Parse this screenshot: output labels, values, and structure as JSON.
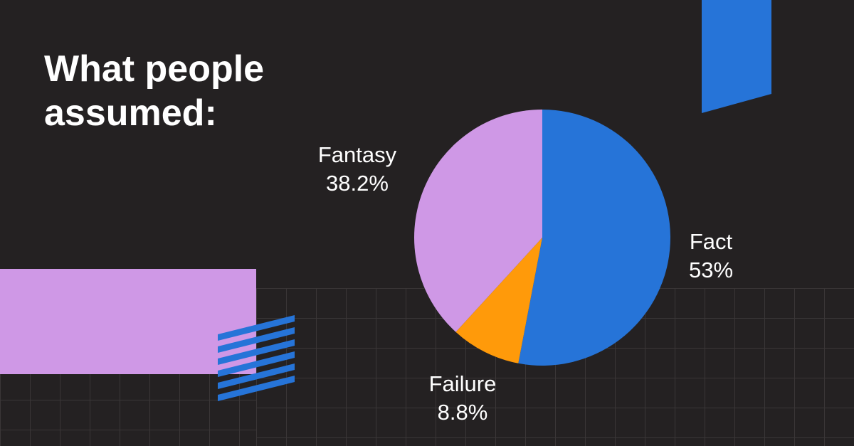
{
  "headline": "What people assumed:",
  "colors": {
    "background": "#242122",
    "fact": "#2674d8",
    "fantasy": "#cf98e6",
    "failure": "#ff9a0a",
    "grid": "#3a3637"
  },
  "chart_data": {
    "type": "pie",
    "title": "",
    "slices": [
      {
        "label": "Fact",
        "value": 53,
        "value_label": "53%",
        "color": "#2674d8"
      },
      {
        "label": "Failure",
        "value": 8.8,
        "value_label": "8.8%",
        "color": "#ff9a0a"
      },
      {
        "label": "Fantasy",
        "value": 38.2,
        "value_label": "38.2%",
        "color": "#cf98e6"
      }
    ],
    "start": "12 o'clock",
    "direction": "clockwise",
    "legend": "none",
    "labels": "outside slices"
  }
}
